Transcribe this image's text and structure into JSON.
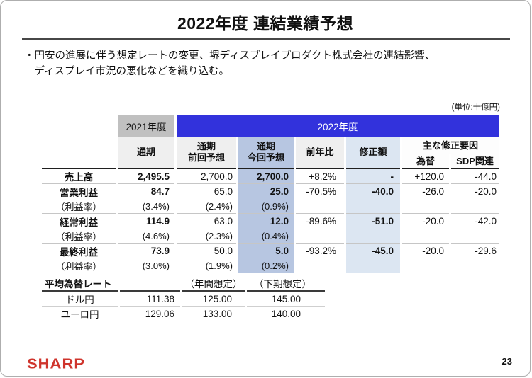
{
  "slide": {
    "title": "2022年度 連結業績予想",
    "bullet_marker": "・",
    "bullet_line1": "円安の進展に伴う想定レートの変更、堺ディスプレイプロダクト株式会社の連結影響、",
    "bullet_line2": "ディスプレイ市況の悪化などを織り込む。",
    "unit_note": "(単位:十億円)",
    "logo_text": "SHARP",
    "page_number": "23"
  },
  "colors": {
    "accent_blue": "#3232dc",
    "header_gray": "#c0c0c0",
    "column_shade_strong": "#b7c6e1",
    "column_shade_light": "#dce6f2",
    "header_light_gray": "#efefef",
    "sharp_red": "#cf342c"
  },
  "forecast_table": {
    "header": {
      "fy2021": "2021年度",
      "fy2022": "2022年度",
      "full_year": "通期",
      "prev_line1": "通期",
      "prev_line2": "前回予想",
      "current_line1": "通期",
      "current_line2": "今回予想",
      "yoy": "前年比",
      "revision": "修正額",
      "factors": "主な修正要因",
      "factor_fx": "為替",
      "factor_sdp": "SDP関連"
    },
    "rows": [
      {
        "label": "売上高",
        "fy2021": "2,495.5",
        "prev": "2,700.0",
        "current": "2,700.0",
        "yoy": "+8.2%",
        "revision": "-",
        "fx": "+120.0",
        "sdp": "-44.0",
        "is_ratio": false,
        "separator_below": true
      },
      {
        "label": "営業利益",
        "fy2021": "84.7",
        "prev": "65.0",
        "current": "25.0",
        "yoy": "-70.5%",
        "revision": "-40.0",
        "fx": "-26.0",
        "sdp": "-20.0",
        "is_ratio": false,
        "separator_below": false
      },
      {
        "label": "（利益率）",
        "fy2021": "(3.4%)",
        "prev": "(2.4%)",
        "current": "(0.9%)",
        "yoy": "",
        "revision": "",
        "fx": "",
        "sdp": "",
        "is_ratio": true,
        "separator_below": true
      },
      {
        "label": "経常利益",
        "fy2021": "114.9",
        "prev": "63.0",
        "current": "12.0",
        "yoy": "-89.6%",
        "revision": "-51.0",
        "fx": "-20.0",
        "sdp": "-42.0",
        "is_ratio": false,
        "separator_below": false
      },
      {
        "label": "（利益率）",
        "fy2021": "(4.6%)",
        "prev": "(2.3%)",
        "current": "(0.4%)",
        "yoy": "",
        "revision": "",
        "fx": "",
        "sdp": "",
        "is_ratio": true,
        "separator_below": true
      },
      {
        "label": "最終利益",
        "fy2021": "73.9",
        "prev": "50.0",
        "current": "5.0",
        "yoy": "-93.2%",
        "revision": "-45.0",
        "fx": "-20.0",
        "sdp": "-29.6",
        "is_ratio": false,
        "separator_below": false
      },
      {
        "label": "（利益率）",
        "fy2021": "(3.0%)",
        "prev": "(1.9%)",
        "current": "(0.2%)",
        "yoy": "",
        "revision": "",
        "fx": "",
        "sdp": "",
        "is_ratio": true,
        "separator_below": false
      }
    ]
  },
  "fx_table": {
    "header": {
      "title": "平均為替レート",
      "blank": "",
      "annual": "（年間想定）",
      "second_half": "（下期想定）"
    },
    "rows": [
      {
        "label": "ドル円",
        "actual": "111.38",
        "annual": "125.00",
        "second_half": "145.00",
        "separator_below": true
      },
      {
        "label": "ユーロ円",
        "actual": "129.06",
        "annual": "133.00",
        "second_half": "140.00",
        "separator_below": false
      }
    ]
  }
}
